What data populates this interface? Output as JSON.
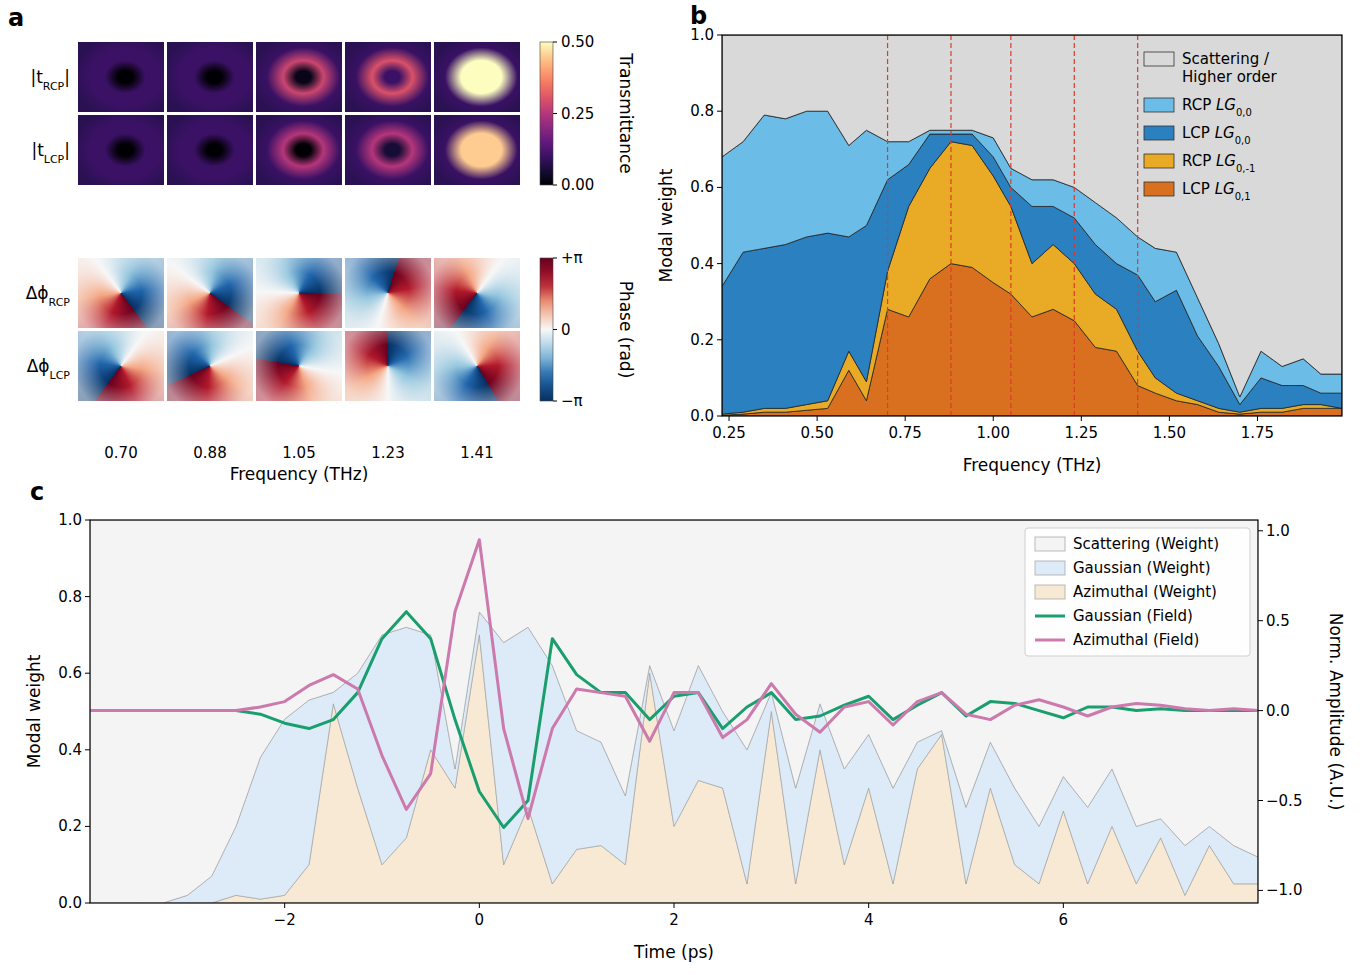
{
  "chart_data": [
    {
      "type": "image_grid",
      "panel_label": "a",
      "x_label": "Frequency (THz)",
      "categories": [
        "0.70",
        "0.88",
        "1.05",
        "1.23",
        "1.41"
      ],
      "rows": [
        {
          "label": "|t",
          "subscript": "RCP",
          "suffix": "|",
          "kind": "transmittance",
          "background": 0.1,
          "peak": [
            0.1,
            0.1,
            0.28,
            0.3,
            0.5
          ],
          "core": [
            0,
            0,
            0.02,
            0.1,
            0.5
          ]
        },
        {
          "label": "|t",
          "subscript": "LCP",
          "suffix": "|",
          "kind": "transmittance",
          "background": 0.1,
          "peak": [
            0.1,
            0.1,
            0.25,
            0.25,
            0.45
          ],
          "core": [
            0,
            0,
            0,
            0.05,
            0.45
          ]
        },
        {
          "label": "Δϕ",
          "subscript": "RCP",
          "suffix": "",
          "kind": "phase",
          "charge": -1,
          "phase_offset": [
            2.5,
            2.2,
            1.6,
            0.3,
            -2.5
          ]
        },
        {
          "label": "Δϕ",
          "subscript": "LCP",
          "suffix": "",
          "kind": "phase",
          "charge": 1,
          "phase_offset": [
            -2.5,
            -2.0,
            -1.4,
            0,
            2.6
          ]
        }
      ],
      "colorbars": [
        {
          "title": "Transmittance",
          "range": [
            0,
            0.5
          ],
          "ticks": [
            {
              "value": 0,
              "label": "0.00"
            },
            0.25,
            {
              "value": 0.5,
              "label": "0.50"
            }
          ]
        },
        {
          "title": "Phase (rad)",
          "range": [
            -3.14159,
            3.14159
          ],
          "ticks": [
            {
              "value": 3.14159,
              "label": "+π"
            },
            0,
            {
              "value": -3.14159,
              "label": "−π"
            }
          ]
        }
      ]
    },
    {
      "type": "area",
      "panel_label": "b",
      "stacked": true,
      "grid": false,
      "legend": "upper right",
      "x_label": "Frequency (THz)",
      "y_label": "Modal weight",
      "x": [
        0.23,
        0.29,
        0.35,
        0.41,
        0.47,
        0.53,
        0.59,
        0.64,
        0.7,
        0.76,
        0.82,
        0.88,
        0.94,
        1,
        1.05,
        1.11,
        1.17,
        1.23,
        1.29,
        1.35,
        1.41,
        1.46,
        1.52,
        1.58,
        1.64,
        1.7,
        1.76,
        1.82,
        1.88,
        1.93,
        1.99
      ],
      "xlim": [
        0.23,
        1.99
      ],
      "xticks": [
        0.25,
        {
          "value": 0.5,
          "label": "0.50"
        },
        0.75,
        {
          "value": 1,
          "label": "1.00"
        },
        1.25,
        {
          "value": 1.5,
          "label": "1.50"
        },
        1.75
      ],
      "ylim": [
        0,
        1
      ],
      "yticks": [
        {
          "value": 0,
          "label": "0.0"
        },
        0.2,
        0.4,
        0.6,
        0.8,
        {
          "value": 1,
          "label": "1.0"
        }
      ],
      "vlines": [
        0.7,
        0.88,
        1.05,
        1.23,
        1.41
      ],
      "series": [
        {
          "name": "Scattering / Higher order",
          "color": "#d9d9d9",
          "values": [
            0.32,
            0.28,
            0.21,
            0.22,
            0.2,
            0.2,
            0.29,
            0.25,
            0.28,
            0.28,
            0.25,
            0.25,
            0.25,
            0.27,
            0.35,
            0.38,
            0.38,
            0.4,
            0.44,
            0.48,
            0.53,
            0.56,
            0.57,
            0.69,
            0.81,
            0.95,
            0.83,
            0.87,
            0.85,
            0.89,
            0.89
          ]
        },
        {
          "name": "RCP LG0,0",
          "color": "#6cbce8",
          "values": [
            0.34,
            0.29,
            0.35,
            0.33,
            0.33,
            0.32,
            0.24,
            0.25,
            0.1,
            0.06,
            0.01,
            0.01,
            0.01,
            0.05,
            0.05,
            0.07,
            0.07,
            0.08,
            0.11,
            0.12,
            0.1,
            0.14,
            0.1,
            0.1,
            0.06,
            0.02,
            0.07,
            0.05,
            0.07,
            0.05,
            0.05
          ]
        },
        {
          "name": "LCP LG0,0",
          "color": "#2b80c0",
          "values": [
            0.335,
            0.42,
            0.42,
            0.43,
            0.44,
            0.44,
            0.3,
            0.41,
            0.24,
            0.11,
            0.09,
            0.02,
            0.03,
            0.05,
            0.05,
            0.15,
            0.1,
            0.12,
            0.13,
            0.12,
            0.2,
            0.2,
            0.27,
            0.17,
            0.11,
            0.02,
            0.08,
            0.06,
            0.05,
            0.03,
            0.04
          ]
        },
        {
          "name": "RCP LG0,-1",
          "color": "#e9aa26",
          "values": [
            0.003,
            0.005,
            0.01,
            0.01,
            0.015,
            0.02,
            0.05,
            0.05,
            0.1,
            0.29,
            0.29,
            0.32,
            0.32,
            0.28,
            0.23,
            0.14,
            0.17,
            0.15,
            0.14,
            0.11,
            0.09,
            0.04,
            0.02,
            0.01,
            0.01,
            0.005,
            0.01,
            0.01,
            0.01,
            0.01,
            0
          ]
        },
        {
          "name": "LCP LG0,1",
          "color": "#d9701f",
          "values": [
            0.002,
            0.005,
            0.01,
            0.01,
            0.015,
            0.02,
            0.12,
            0.04,
            0.28,
            0.26,
            0.36,
            0.4,
            0.39,
            0.35,
            0.32,
            0.26,
            0.28,
            0.25,
            0.18,
            0.17,
            0.08,
            0.06,
            0.04,
            0.03,
            0.01,
            0.005,
            0.01,
            0.01,
            0.02,
            0.02,
            0.02
          ]
        }
      ]
    },
    {
      "type": "area",
      "panel_label": "c",
      "stacked": true,
      "grid": false,
      "legend": "upper right",
      "x_label": "Time (ps)",
      "y_label": "Modal weight",
      "y2_label": "Norm. Amplitude (A.U.)",
      "x": [
        -4,
        -3.75,
        -3.5,
        -3.25,
        -3,
        -2.75,
        -2.5,
        -2.25,
        -2,
        -1.75,
        -1.5,
        -1.25,
        -1,
        -0.75,
        -0.5,
        -0.25,
        0,
        0.25,
        0.5,
        0.75,
        1,
        1.25,
        1.5,
        1.75,
        2,
        2.25,
        2.5,
        2.75,
        3,
        3.25,
        3.5,
        3.75,
        4,
        4.25,
        4.5,
        4.75,
        5,
        5.25,
        5.5,
        5.75,
        6,
        6.25,
        6.5,
        6.75,
        7,
        7.25,
        7.5,
        7.75,
        8
      ],
      "xlim": [
        -4,
        8
      ],
      "xticks": [
        {
          "value": -2,
          "label": "−2"
        },
        0,
        2,
        4,
        6
      ],
      "ylim": [
        0,
        1
      ],
      "yticks": [
        {
          "value": 0,
          "label": "0.0"
        },
        0.2,
        0.4,
        0.6,
        0.8,
        {
          "value": 1,
          "label": "1.0"
        }
      ],
      "y2lim": [
        -1.07,
        1.06
      ],
      "y2ticks": [
        {
          "value": -1,
          "label": "−1.0"
        },
        {
          "value": -0.5,
          "label": "−0.5"
        },
        {
          "value": 0,
          "label": "0.0"
        },
        0.5,
        {
          "value": 1,
          "label": "1.0"
        }
      ],
      "series": [
        {
          "name": "Scattering (Weight)",
          "color": "#f4f4f4",
          "values": [
            1,
            1,
            1,
            1,
            0.98,
            0.93,
            0.8,
            0.62,
            0.52,
            0.47,
            0.45,
            0.4,
            0.3,
            0.28,
            0.3,
            0.65,
            0.24,
            0.32,
            0.28,
            0.38,
            0.55,
            0.58,
            0.72,
            0.38,
            0.55,
            0.38,
            0.5,
            0.6,
            0.45,
            0.7,
            0.48,
            0.65,
            0.56,
            0.7,
            0.58,
            0.55,
            0.75,
            0.58,
            0.7,
            0.8,
            0.67,
            0.75,
            0.65,
            0.8,
            0.78,
            0.85,
            0.8,
            0.85,
            0.88
          ]
        },
        {
          "name": "Gaussian (Weight)",
          "color": "#dcebf7",
          "values": [
            0,
            0,
            0,
            0,
            0.02,
            0.07,
            0.18,
            0.37,
            0.46,
            0.43,
            0.03,
            0.3,
            0.6,
            0.55,
            0.3,
            0.05,
            0.06,
            0.58,
            0.47,
            0.57,
            0.31,
            0.27,
            0.18,
            0.02,
            0.25,
            0.3,
            0.2,
            0.35,
            0.05,
            0.25,
            0.12,
            0.25,
            0.14,
            0.25,
            0.07,
            0.01,
            0.2,
            0.12,
            0.2,
            0.15,
            0.09,
            0.2,
            0.15,
            0.15,
            0.05,
            0.13,
            0.05,
            0.1,
            0.07
          ]
        },
        {
          "name": "Azimuthal (Weight)",
          "color": "#f7e9d3",
          "values": [
            0,
            0,
            0,
            0,
            0,
            0,
            0.02,
            0.01,
            0.02,
            0.1,
            0.52,
            0.3,
            0.1,
            0.17,
            0.4,
            0.3,
            0.7,
            0.1,
            0.25,
            0.05,
            0.14,
            0.15,
            0.1,
            0.6,
            0.2,
            0.32,
            0.3,
            0.05,
            0.5,
            0.05,
            0.4,
            0.1,
            0.3,
            0.05,
            0.35,
            0.44,
            0.05,
            0.3,
            0.1,
            0.05,
            0.24,
            0.05,
            0.2,
            0.05,
            0.17,
            0.02,
            0.15,
            0.05,
            0.05
          ]
        },
        {
          "name": "Gaussian (Field)",
          "color": "#1a9e6e",
          "type": "line",
          "axis": "y2",
          "values": [
            0,
            0,
            0,
            0,
            0,
            0,
            0,
            -0.02,
            -0.07,
            -0.1,
            -0.05,
            0.1,
            0.4,
            0.55,
            0.4,
            -0.05,
            -0.45,
            -0.65,
            -0.5,
            0.4,
            0.2,
            0.1,
            0.1,
            -0.05,
            0.08,
            0.1,
            -0.1,
            0.02,
            0.1,
            -0.05,
            -0.03,
            0.03,
            0.08,
            -0.05,
            0.03,
            0.1,
            -0.03,
            0.05,
            0.04,
            0,
            -0.04,
            0.02,
            0.02,
            0,
            0.01,
            0,
            0,
            0,
            0
          ]
        },
        {
          "name": "Azimuthal (Field)",
          "color": "#cc79ad",
          "type": "line",
          "axis": "y2",
          "values": [
            0,
            0,
            0,
            0,
            0,
            0,
            0,
            0.02,
            0.05,
            0.14,
            0.2,
            0.12,
            -0.25,
            -0.55,
            -0.35,
            0.55,
            0.95,
            -0.1,
            -0.6,
            -0.1,
            0.12,
            0.1,
            0.08,
            -0.17,
            0.1,
            0.1,
            -0.15,
            -0.05,
            0.15,
            -0.02,
            -0.12,
            0.02,
            0.05,
            -0.08,
            0.05,
            0.1,
            -0.02,
            -0.05,
            0.03,
            0.06,
            0.02,
            -0.03,
            0.02,
            0.04,
            0.03,
            0.01,
            0,
            0.01,
            0
          ]
        }
      ]
    }
  ]
}
